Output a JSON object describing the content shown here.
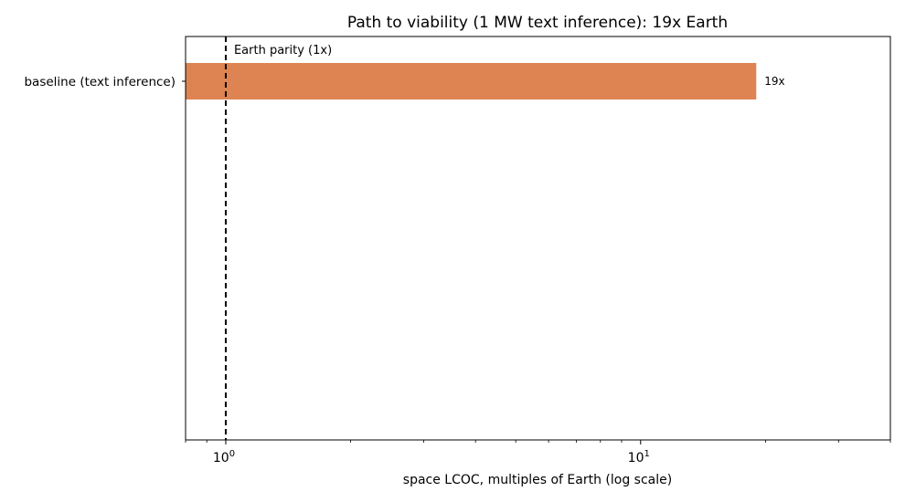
{
  "chart_data": {
    "type": "bar",
    "orientation": "horizontal",
    "title": "Path to viability (1 MW text inference): 19x Earth",
    "xlabel": "space LCOC, multiples of Earth (log scale)",
    "ylabel": "",
    "x_scale": "log",
    "xlim": [
      0.8,
      40
    ],
    "grid": false,
    "categories": [
      "baseline (text inference)"
    ],
    "values": [
      19
    ],
    "data_labels": [
      "19x"
    ],
    "bar_color": "#DD8452",
    "x_ticks": [
      {
        "base": "10",
        "exp": "0",
        "value": 1
      },
      {
        "base": "10",
        "exp": "1",
        "value": 10
      }
    ],
    "reference_line": {
      "value": 1,
      "label": "Earth parity (1x)",
      "style": "dashed",
      "color": "#000000"
    }
  }
}
